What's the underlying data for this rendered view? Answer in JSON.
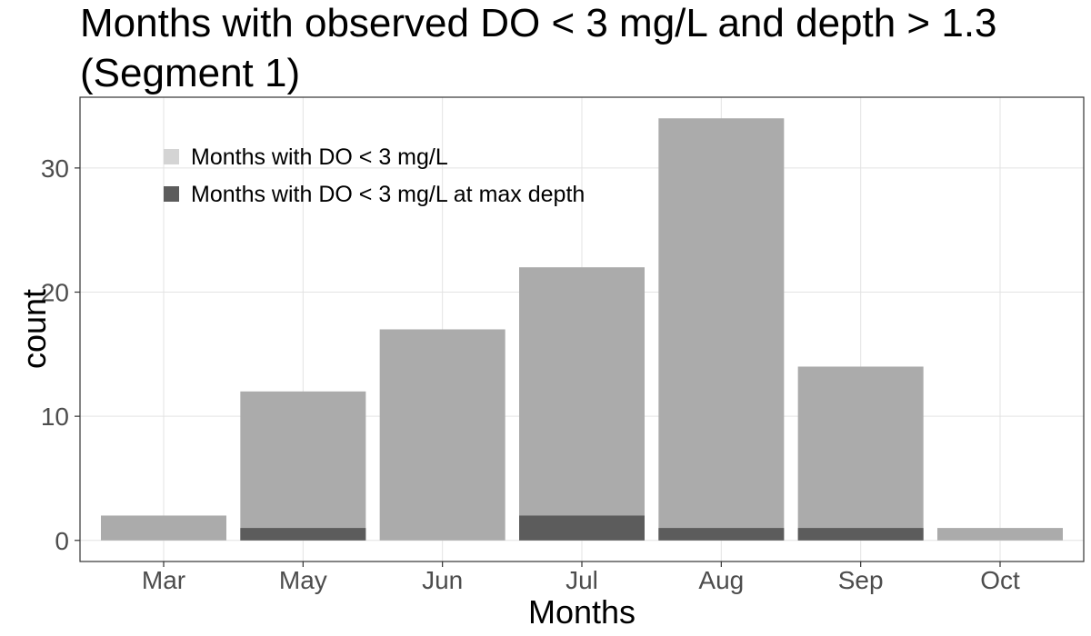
{
  "chart_data": {
    "type": "bar",
    "title_lines": [
      "Months with observed DO < 3 mg/L and depth > 1.3",
      "(Segment 1)"
    ],
    "xlabel": "Months",
    "ylabel": "count",
    "categories": [
      "Mar",
      "May",
      "Jun",
      "Jul",
      "Aug",
      "Sep",
      "Oct"
    ],
    "series": [
      {
        "name": "Months with DO < 3 mg/L",
        "values": [
          2,
          12,
          17,
          22,
          34,
          14,
          1
        ],
        "color": "#ababab"
      },
      {
        "name": "Months with DO < 3 mg/L at max depth",
        "values": [
          0,
          1,
          0,
          2,
          1,
          1,
          0
        ],
        "color": "#5c5c5c"
      }
    ],
    "legend_swatch_colors": [
      "#d4d4d4",
      "#5c5c5c"
    ],
    "ylim": [
      -1.7,
      35.7
    ],
    "yticks": [
      0,
      10,
      20,
      30
    ],
    "grid": true,
    "legend_position": "top-left"
  }
}
